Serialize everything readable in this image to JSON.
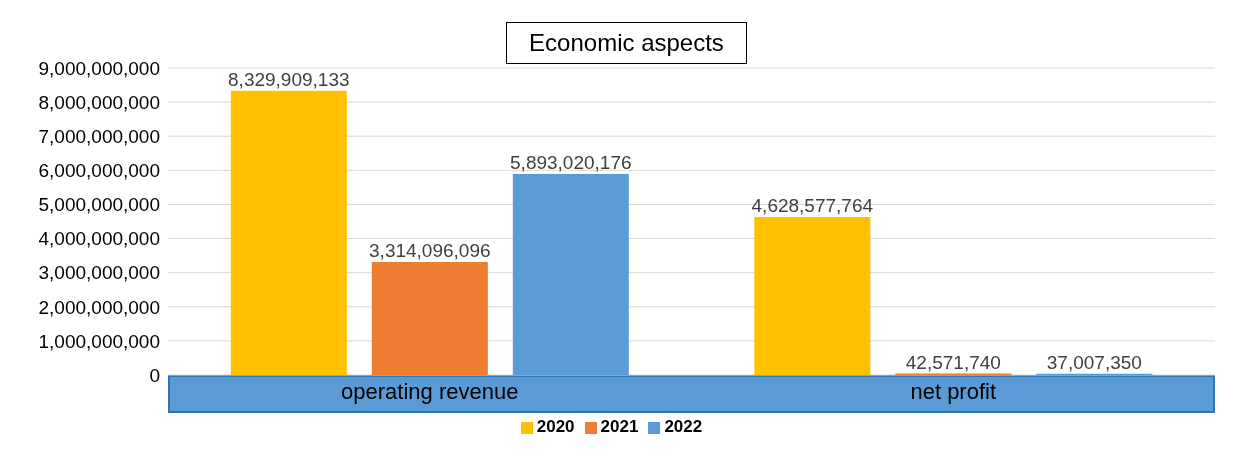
{
  "chart_data": {
    "type": "bar",
    "title": "Economic aspects",
    "categories": [
      "operating revenue",
      "net profit"
    ],
    "series": [
      {
        "name": "2020",
        "color": "#ffc000",
        "values": [
          8329909133,
          4628577764
        ],
        "value_labels": [
          "8,329,909,133",
          "4,628,577,764"
        ]
      },
      {
        "name": "2021",
        "color": "#ed7d31",
        "values": [
          3314096096,
          42571740
        ],
        "value_labels": [
          "3,314,096,096",
          "42,571,740"
        ]
      },
      {
        "name": "2022",
        "color": "#5b9bd5",
        "values": [
          5893020176,
          37007350
        ],
        "value_labels": [
          "5,893,020,176",
          "37,007,350"
        ]
      }
    ],
    "ylim": [
      0,
      9000000000
    ],
    "yticks": [
      0,
      {
        "value": 1000000000,
        "label": "1,000,000,000"
      },
      {
        "value": 2000000000,
        "label": "2,000,000,000"
      },
      {
        "value": 3000000000,
        "label": "3,000,000,000"
      },
      {
        "value": 4000000000,
        "label": "4,000,000,000"
      },
      {
        "value": 5000000000,
        "label": "5,000,000,000"
      },
      {
        "value": 6000000000,
        "label": "6,000,000,000"
      },
      {
        "value": 7000000000,
        "label": "7,000,000,000"
      },
      {
        "value": 8000000000,
        "label": "8,000,000,000"
      },
      {
        "value": 9000000000,
        "label": "9,000,000,000"
      }
    ],
    "grid": "y",
    "legend": "bottom"
  }
}
